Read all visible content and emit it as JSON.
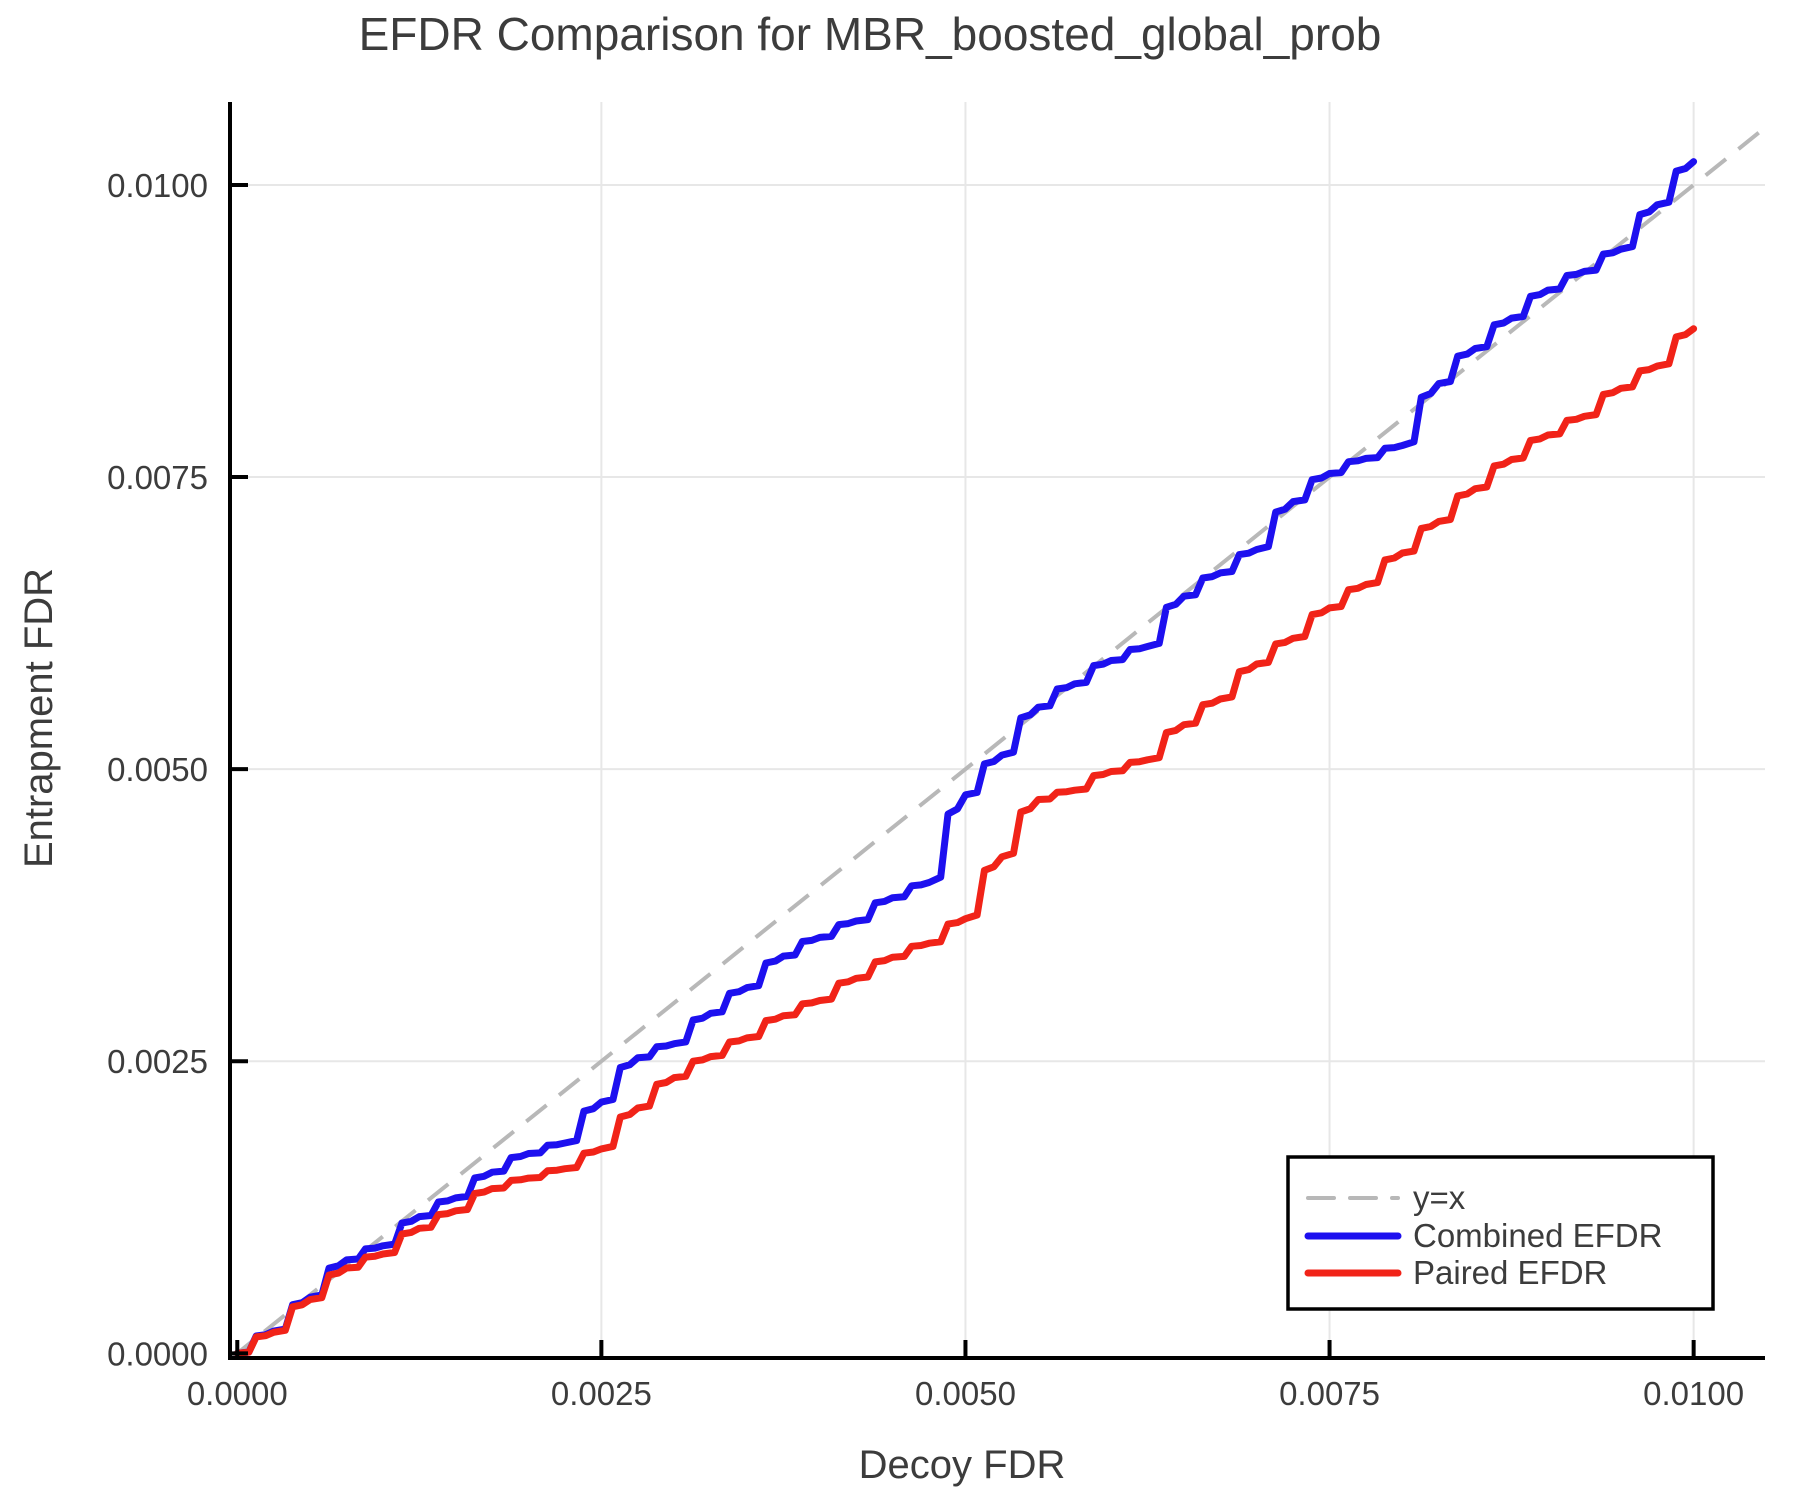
{
  "chart_data": {
    "type": "line",
    "title": "EFDR Comparison for MBR_boosted_global_prob",
    "xlabel": "Decoy FDR",
    "ylabel": "Entrapment FDR",
    "xlim": [
      -5e-05,
      0.01049
    ],
    "ylim": [
      -4e-05,
      0.01071
    ],
    "xticks": [
      0.0,
      0.0025,
      0.005,
      0.0075,
      0.01
    ],
    "xtick_labels": [
      "0.0000",
      "0.0025",
      "0.0050",
      "0.0075",
      "0.0100"
    ],
    "yticks": [
      0.0,
      0.0025,
      0.005,
      0.0075,
      0.01
    ],
    "ytick_labels": [
      "0.0000",
      "0.0025",
      "0.0050",
      "0.0075",
      "0.0100"
    ],
    "grid": true,
    "legend_position": "lower right",
    "x": [
      0.0,
      0.00025,
      0.0005,
      0.00075,
      0.001,
      0.00125,
      0.0015,
      0.00175,
      0.002,
      0.00225,
      0.0025,
      0.00275,
      0.003,
      0.00325,
      0.0035,
      0.00375,
      0.004,
      0.00425,
      0.0045,
      0.00475,
      0.005,
      0.00525,
      0.0055,
      0.00575,
      0.006,
      0.00625,
      0.0065,
      0.00675,
      0.007,
      0.00725,
      0.0075,
      0.00775,
      0.008,
      0.00825,
      0.0085,
      0.00875,
      0.009,
      0.00925,
      0.0095,
      0.00975,
      0.01
    ],
    "reference_line": {
      "label": "y=x",
      "description": "diagonal y equals x",
      "color": "#b8b8b8",
      "dashed": true
    },
    "series": [
      {
        "name": "Combined EFDR",
        "color": "#1d10ef",
        "values": [
          0.0,
          0.00019,
          0.00048,
          0.0008,
          0.00092,
          0.00117,
          0.00133,
          0.00155,
          0.00171,
          0.0018,
          0.00215,
          0.00253,
          0.00265,
          0.00291,
          0.00313,
          0.0034,
          0.00356,
          0.0037,
          0.0039,
          0.00403,
          0.00478,
          0.00512,
          0.00553,
          0.00573,
          0.00593,
          0.00605,
          0.00648,
          0.00668,
          0.00688,
          0.00729,
          0.00753,
          0.00766,
          0.00777,
          0.0083,
          0.0086,
          0.00886,
          0.0091,
          0.00926,
          0.00945,
          0.00983,
          0.0102
        ]
      },
      {
        "name": "Paired EFDR",
        "color": "#f12318",
        "values": [
          0.0,
          0.00018,
          0.00046,
          0.00073,
          0.00085,
          0.00107,
          0.00122,
          0.00141,
          0.0015,
          0.00158,
          0.00175,
          0.0021,
          0.00236,
          0.00254,
          0.0027,
          0.00289,
          0.00302,
          0.00321,
          0.00339,
          0.00351,
          0.00372,
          0.00425,
          0.00474,
          0.00482,
          0.00498,
          0.00508,
          0.00538,
          0.0056,
          0.0059,
          0.00612,
          0.00638,
          0.00658,
          0.00685,
          0.00712,
          0.0074,
          0.00765,
          0.00786,
          0.00802,
          0.00826,
          0.00845,
          0.00877
        ]
      }
    ],
    "legend_entries": [
      "y=x",
      "Combined EFDR",
      "Paired EFDR"
    ],
    "colors": {
      "grid": "#e7e7e7",
      "spine": "#000000",
      "text": "#3c3c3c",
      "reference": "#b8b8b8",
      "combined": "#1d10ef",
      "paired": "#f12318",
      "background": "#ffffff"
    }
  }
}
